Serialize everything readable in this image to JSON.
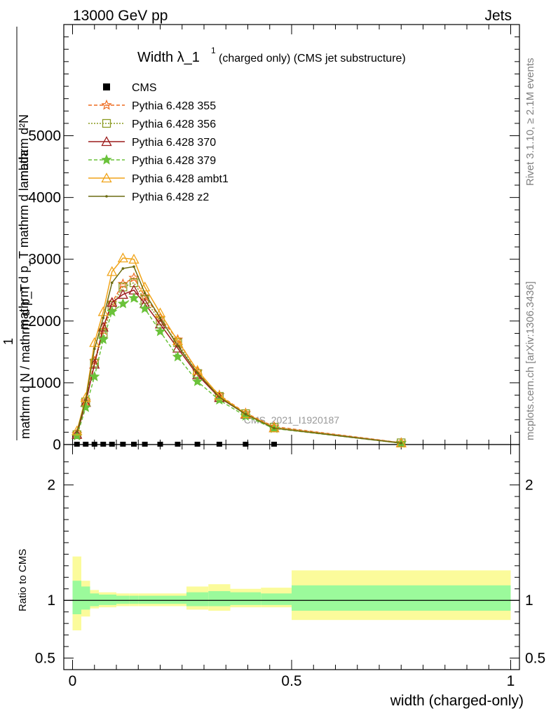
{
  "header": {
    "left": "13000 GeV pp",
    "right": "Jets"
  },
  "side": {
    "rivet": "Rivet 3.1.10, ≥ 2.1M events",
    "mcplots": "mcplots.cern.ch [arXiv:1306.3436]"
  },
  "chart_data": {
    "type": "line",
    "title_main": "Width λ_1",
    "title_sup": "1",
    "title_rest": "(charged only) (CMS jet substructure)",
    "watermark": "CMS_2021_I1920187",
    "ylabel_top": "mathrm d²N",
    "ylabel_top2": "mathrm d p_T mathrm d lambda",
    "ylabel_one": "1",
    "ylabel_bottom": "mathrm d N / mathrm d p_T",
    "ylabel_ratio": "Ratio to CMS",
    "xlabel": "width (charged-only)",
    "xlim": [
      -0.02,
      1.02
    ],
    "ylim": [
      0,
      6800
    ],
    "ratio_ylim": [
      0.4,
      2.35
    ],
    "x_ticks": [
      "0",
      "0.5",
      "1"
    ],
    "y_ticks": [
      "0",
      "1000",
      "2000",
      "3000",
      "4000",
      "5000"
    ],
    "ratio_ticks": [
      "0.5",
      "1",
      "2"
    ],
    "x": [
      0.01,
      0.03,
      0.05,
      0.07,
      0.09,
      0.115,
      0.14,
      0.165,
      0.2,
      0.24,
      0.285,
      0.335,
      0.395,
      0.46,
      0.75
    ],
    "cms": {
      "name": "CMS",
      "x": [
        0.01,
        0.03,
        0.05,
        0.07,
        0.09,
        0.115,
        0.14,
        0.165,
        0.2,
        0.24,
        0.285,
        0.335,
        0.395,
        0.46
      ],
      "values": [
        0,
        0,
        0,
        0,
        0,
        0,
        0,
        0,
        0,
        0,
        0,
        0,
        0,
        0
      ]
    },
    "series": [
      {
        "name": "Pythia 6.428 355",
        "color": "#ee6a1e",
        "dash": "5,3",
        "marker": "star-open",
        "values": [
          170,
          700,
          1350,
          1850,
          2300,
          2600,
          2700,
          2400,
          2050,
          1700,
          1180,
          800,
          510,
          290,
          30
        ]
      },
      {
        "name": "Pythia 6.428 356",
        "color": "#8a9a1f",
        "dash": "2,2",
        "marker": "square-open",
        "values": [
          160,
          690,
          1320,
          1800,
          2250,
          2550,
          2620,
          2350,
          2000,
          1650,
          1150,
          780,
          500,
          280,
          28
        ]
      },
      {
        "name": "Pythia 6.428 370",
        "color": "#9b1b1b",
        "dash": "",
        "marker": "triangle-open",
        "values": [
          165,
          680,
          1300,
          1900,
          2300,
          2430,
          2500,
          2280,
          1950,
          1560,
          1130,
          760,
          490,
          270,
          25
        ]
      },
      {
        "name": "Pythia 6.428 379",
        "color": "#6ac23a",
        "dash": "5,3",
        "marker": "star-filled",
        "values": [
          140,
          600,
          1100,
          1700,
          2150,
          2280,
          2370,
          2200,
          1830,
          1420,
          1020,
          720,
          460,
          260,
          22
        ]
      },
      {
        "name": "Pythia 6.428 ambt1",
        "color": "#f0a318",
        "dash": "",
        "marker": "triangle-open",
        "values": [
          220,
          760,
          1650,
          2150,
          2800,
          3020,
          3000,
          2550,
          2130,
          1680,
          1200,
          790,
          500,
          270,
          24
        ]
      },
      {
        "name": "Pythia 6.428 z2",
        "color": "#6b6b10",
        "dash": "",
        "marker": "dot",
        "values": [
          200,
          720,
          1550,
          2050,
          2620,
          2850,
          2880,
          2450,
          2050,
          1600,
          1160,
          770,
          490,
          265,
          23
        ]
      }
    ],
    "ratio_bands": {
      "edges": [
        0.0,
        0.02,
        0.04,
        0.06,
        0.08,
        0.1,
        0.13,
        0.15,
        0.18,
        0.22,
        0.26,
        0.31,
        0.36,
        0.43,
        0.5,
        1.0
      ],
      "inner_low": [
        0.88,
        0.92,
        0.95,
        0.96,
        0.96,
        0.97,
        0.97,
        0.97,
        0.97,
        0.97,
        0.95,
        0.95,
        0.96,
        0.96,
        0.91
      ],
      "inner_high": [
        1.17,
        1.12,
        1.06,
        1.05,
        1.05,
        1.04,
        1.04,
        1.04,
        1.04,
        1.04,
        1.07,
        1.08,
        1.07,
        1.06,
        1.13
      ],
      "outer_low": [
        0.74,
        0.86,
        0.93,
        0.94,
        0.94,
        0.95,
        0.95,
        0.95,
        0.95,
        0.95,
        0.92,
        0.91,
        0.94,
        0.94,
        0.83
      ],
      "outer_high": [
        1.38,
        1.17,
        1.09,
        1.07,
        1.07,
        1.06,
        1.06,
        1.06,
        1.06,
        1.06,
        1.12,
        1.14,
        1.1,
        1.11,
        1.26
      ],
      "inner_color": "#9bfa9b",
      "outer_color": "#fbfb9b"
    }
  }
}
